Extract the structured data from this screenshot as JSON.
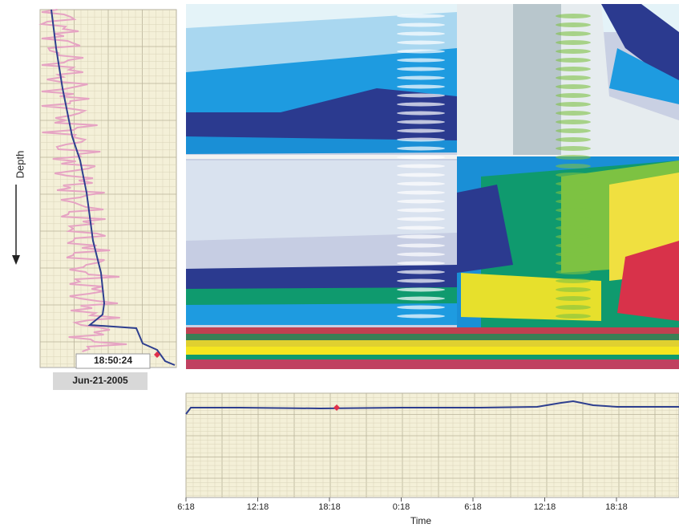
{
  "left_panel": {
    "axis_label": "Depth",
    "time": "18:50:24",
    "date": "Jun-21-2005"
  },
  "bottom_panel": {
    "x_ticks": [
      "6:18",
      "12:18",
      "18:18",
      "0:18",
      "6:18",
      "12:18",
      "18:18"
    ],
    "x_label": "Time"
  }
}
